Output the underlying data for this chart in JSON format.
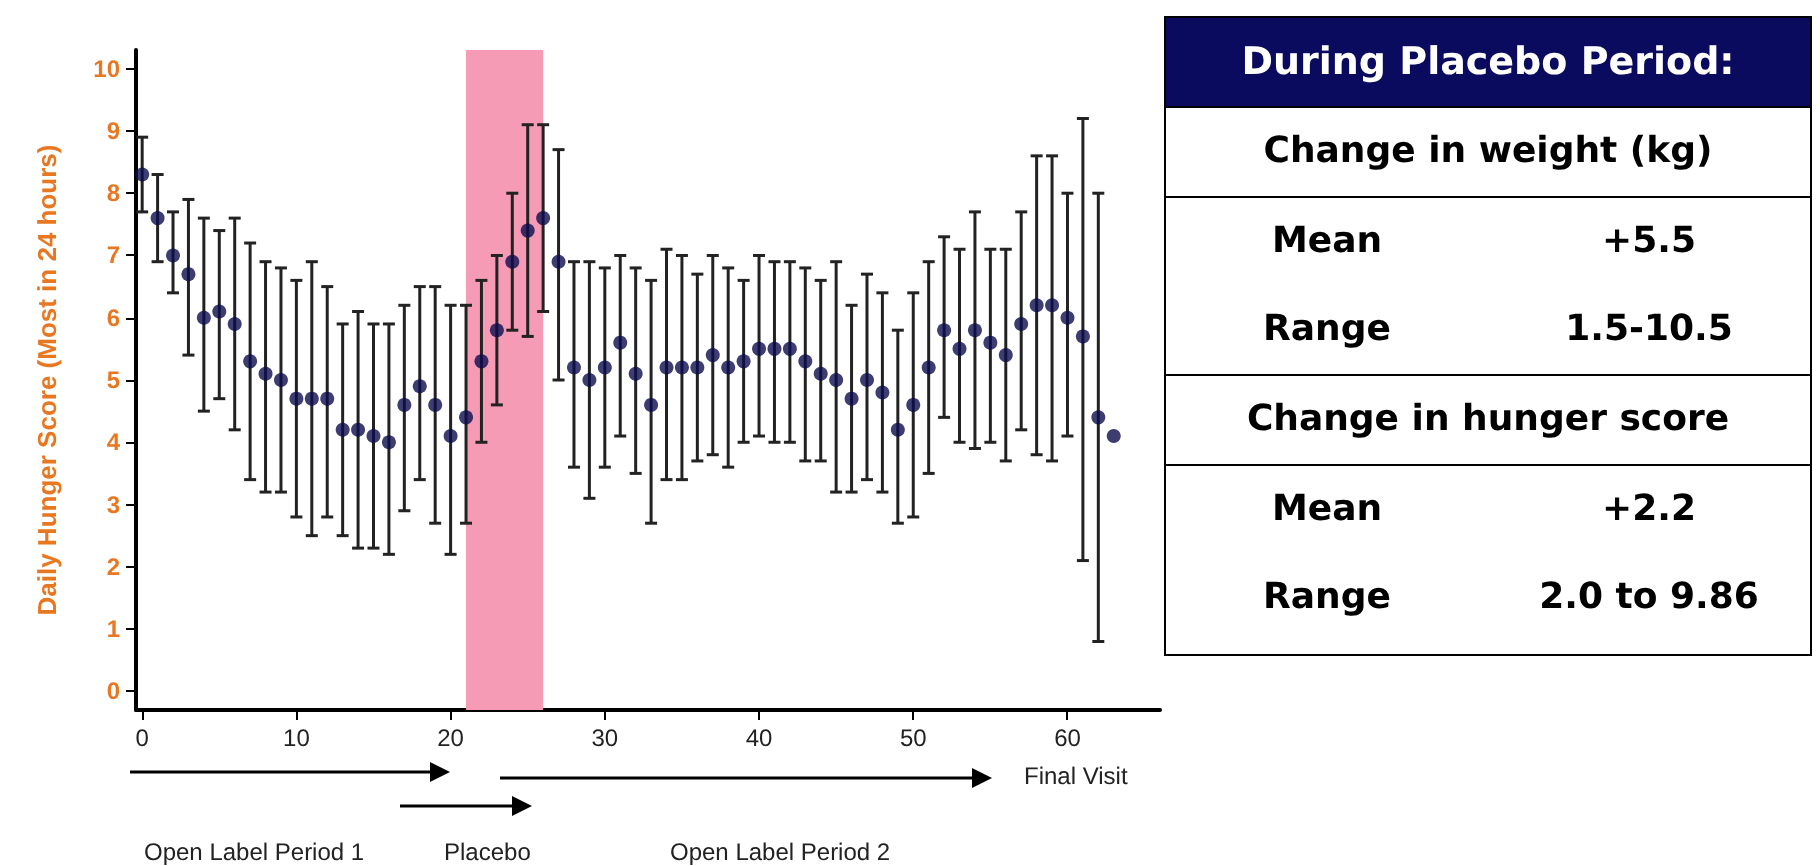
{
  "chart_data": [
    {
      "type": "scatter",
      "ylabel": "Daily Hunger Score (Most in 24 hours)",
      "x": [
        0,
        1,
        2,
        3,
        4,
        5,
        6,
        7,
        8,
        9,
        10,
        11,
        12,
        13,
        14,
        15,
        16,
        17,
        18,
        19,
        20,
        21,
        22,
        23,
        24,
        25,
        26,
        27,
        28,
        29,
        30,
        31,
        32,
        33,
        34,
        35,
        36,
        37,
        38,
        39,
        40,
        41,
        42,
        43,
        44,
        45,
        46,
        47,
        48,
        49,
        50,
        51,
        52,
        53,
        54,
        55,
        56,
        57,
        58,
        59,
        60,
        61,
        62,
        63
      ],
      "series": [
        {
          "color": "#0d0d4d",
          "values": [
            8.3,
            7.6,
            7.0,
            6.7,
            6.0,
            6.1,
            5.9,
            5.3,
            5.1,
            5.0,
            4.7,
            4.7,
            4.7,
            4.2,
            4.2,
            4.1,
            4.0,
            4.6,
            4.9,
            4.6,
            4.1,
            4.4,
            5.3,
            5.8,
            6.9,
            7.4,
            7.6,
            6.9,
            5.2,
            5.0,
            5.2,
            5.6,
            5.1,
            4.6,
            5.2,
            5.2,
            5.2,
            5.4,
            5.2,
            5.3,
            5.5,
            5.5,
            5.5,
            5.3,
            5.1,
            5.0,
            4.7,
            5.0,
            4.8,
            4.2,
            4.6,
            5.2,
            5.8,
            5.5,
            5.8,
            5.6,
            5.4,
            5.9,
            6.2,
            6.2,
            6.0,
            5.7,
            4.4,
            4.1
          ],
          "errors": [
            [
              7.7,
              8.9
            ],
            [
              6.9,
              8.3
            ],
            [
              6.4,
              7.7
            ],
            [
              5.4,
              7.9
            ],
            [
              4.5,
              7.6
            ],
            [
              4.7,
              7.4
            ],
            [
              4.2,
              7.6
            ],
            [
              3.4,
              7.2
            ],
            [
              3.2,
              6.9
            ],
            [
              3.2,
              6.8
            ],
            [
              2.8,
              6.6
            ],
            [
              2.5,
              6.9
            ],
            [
              2.8,
              6.5
            ],
            [
              2.5,
              5.9
            ],
            [
              2.3,
              6.1
            ],
            [
              2.3,
              5.9
            ],
            [
              2.2,
              5.9
            ],
            [
              2.9,
              6.2
            ],
            [
              3.4,
              6.5
            ],
            [
              2.7,
              6.5
            ],
            [
              2.2,
              6.2
            ],
            [
              2.7,
              6.2
            ],
            [
              4.0,
              6.6
            ],
            [
              4.6,
              7.0
            ],
            [
              5.8,
              8.0
            ],
            [
              5.7,
              9.1
            ],
            [
              6.1,
              9.1
            ],
            [
              5.0,
              8.7
            ],
            [
              3.6,
              6.9
            ],
            [
              3.1,
              6.9
            ],
            [
              3.6,
              6.8
            ],
            [
              4.1,
              7.0
            ],
            [
              3.5,
              6.8
            ],
            [
              2.7,
              6.6
            ],
            [
              3.4,
              7.1
            ],
            [
              3.4,
              7.0
            ],
            [
              3.7,
              6.7
            ],
            [
              3.8,
              7.0
            ],
            [
              3.6,
              6.8
            ],
            [
              4.0,
              6.6
            ],
            [
              4.1,
              7.0
            ],
            [
              4.0,
              6.9
            ],
            [
              4.0,
              6.9
            ],
            [
              3.7,
              6.8
            ],
            [
              3.7,
              6.6
            ],
            [
              3.2,
              6.9
            ],
            [
              3.2,
              6.2
            ],
            [
              3.4,
              6.7
            ],
            [
              3.2,
              6.4
            ],
            [
              2.7,
              5.8
            ],
            [
              2.8,
              6.4
            ],
            [
              3.5,
              6.9
            ],
            [
              4.4,
              7.3
            ],
            [
              4.0,
              7.1
            ],
            [
              3.9,
              7.7
            ],
            [
              4.0,
              7.1
            ],
            [
              3.7,
              7.1
            ],
            [
              4.2,
              7.7
            ],
            [
              3.8,
              8.6
            ],
            [
              3.7,
              8.6
            ],
            [
              4.1,
              8.0
            ],
            [
              2.1,
              9.2
            ],
            [
              0.8,
              8.0
            ],
            null
          ]
        }
      ],
      "xlim": [
        -0.4,
        66
      ],
      "xticks": [
        0,
        10,
        20,
        30,
        40,
        50,
        60
      ],
      "ylim": [
        -0.3,
        10.3
      ],
      "yticks": [
        0,
        1,
        2,
        3,
        4,
        5,
        6,
        7,
        8,
        9,
        10
      ],
      "bands": [
        {
          "axis": "x",
          "from": 21,
          "to": 26,
          "color": "#f59bb5"
        }
      ],
      "marker": "circle",
      "grid": false,
      "annotations": [
        "Final Visit",
        "Open Label Period 1",
        "Placebo",
        "Open Label Period 2"
      ]
    },
    {
      "type": "other",
      "title": "During Placebo Period:",
      "annotations": [
        "Change in weight (kg)",
        "Mean",
        "+5.5",
        "Range",
        "1.5-10.5",
        "Change in hunger score",
        "Mean",
        "+2.2",
        "Range",
        "2.0 to 9.86"
      ]
    }
  ]
}
